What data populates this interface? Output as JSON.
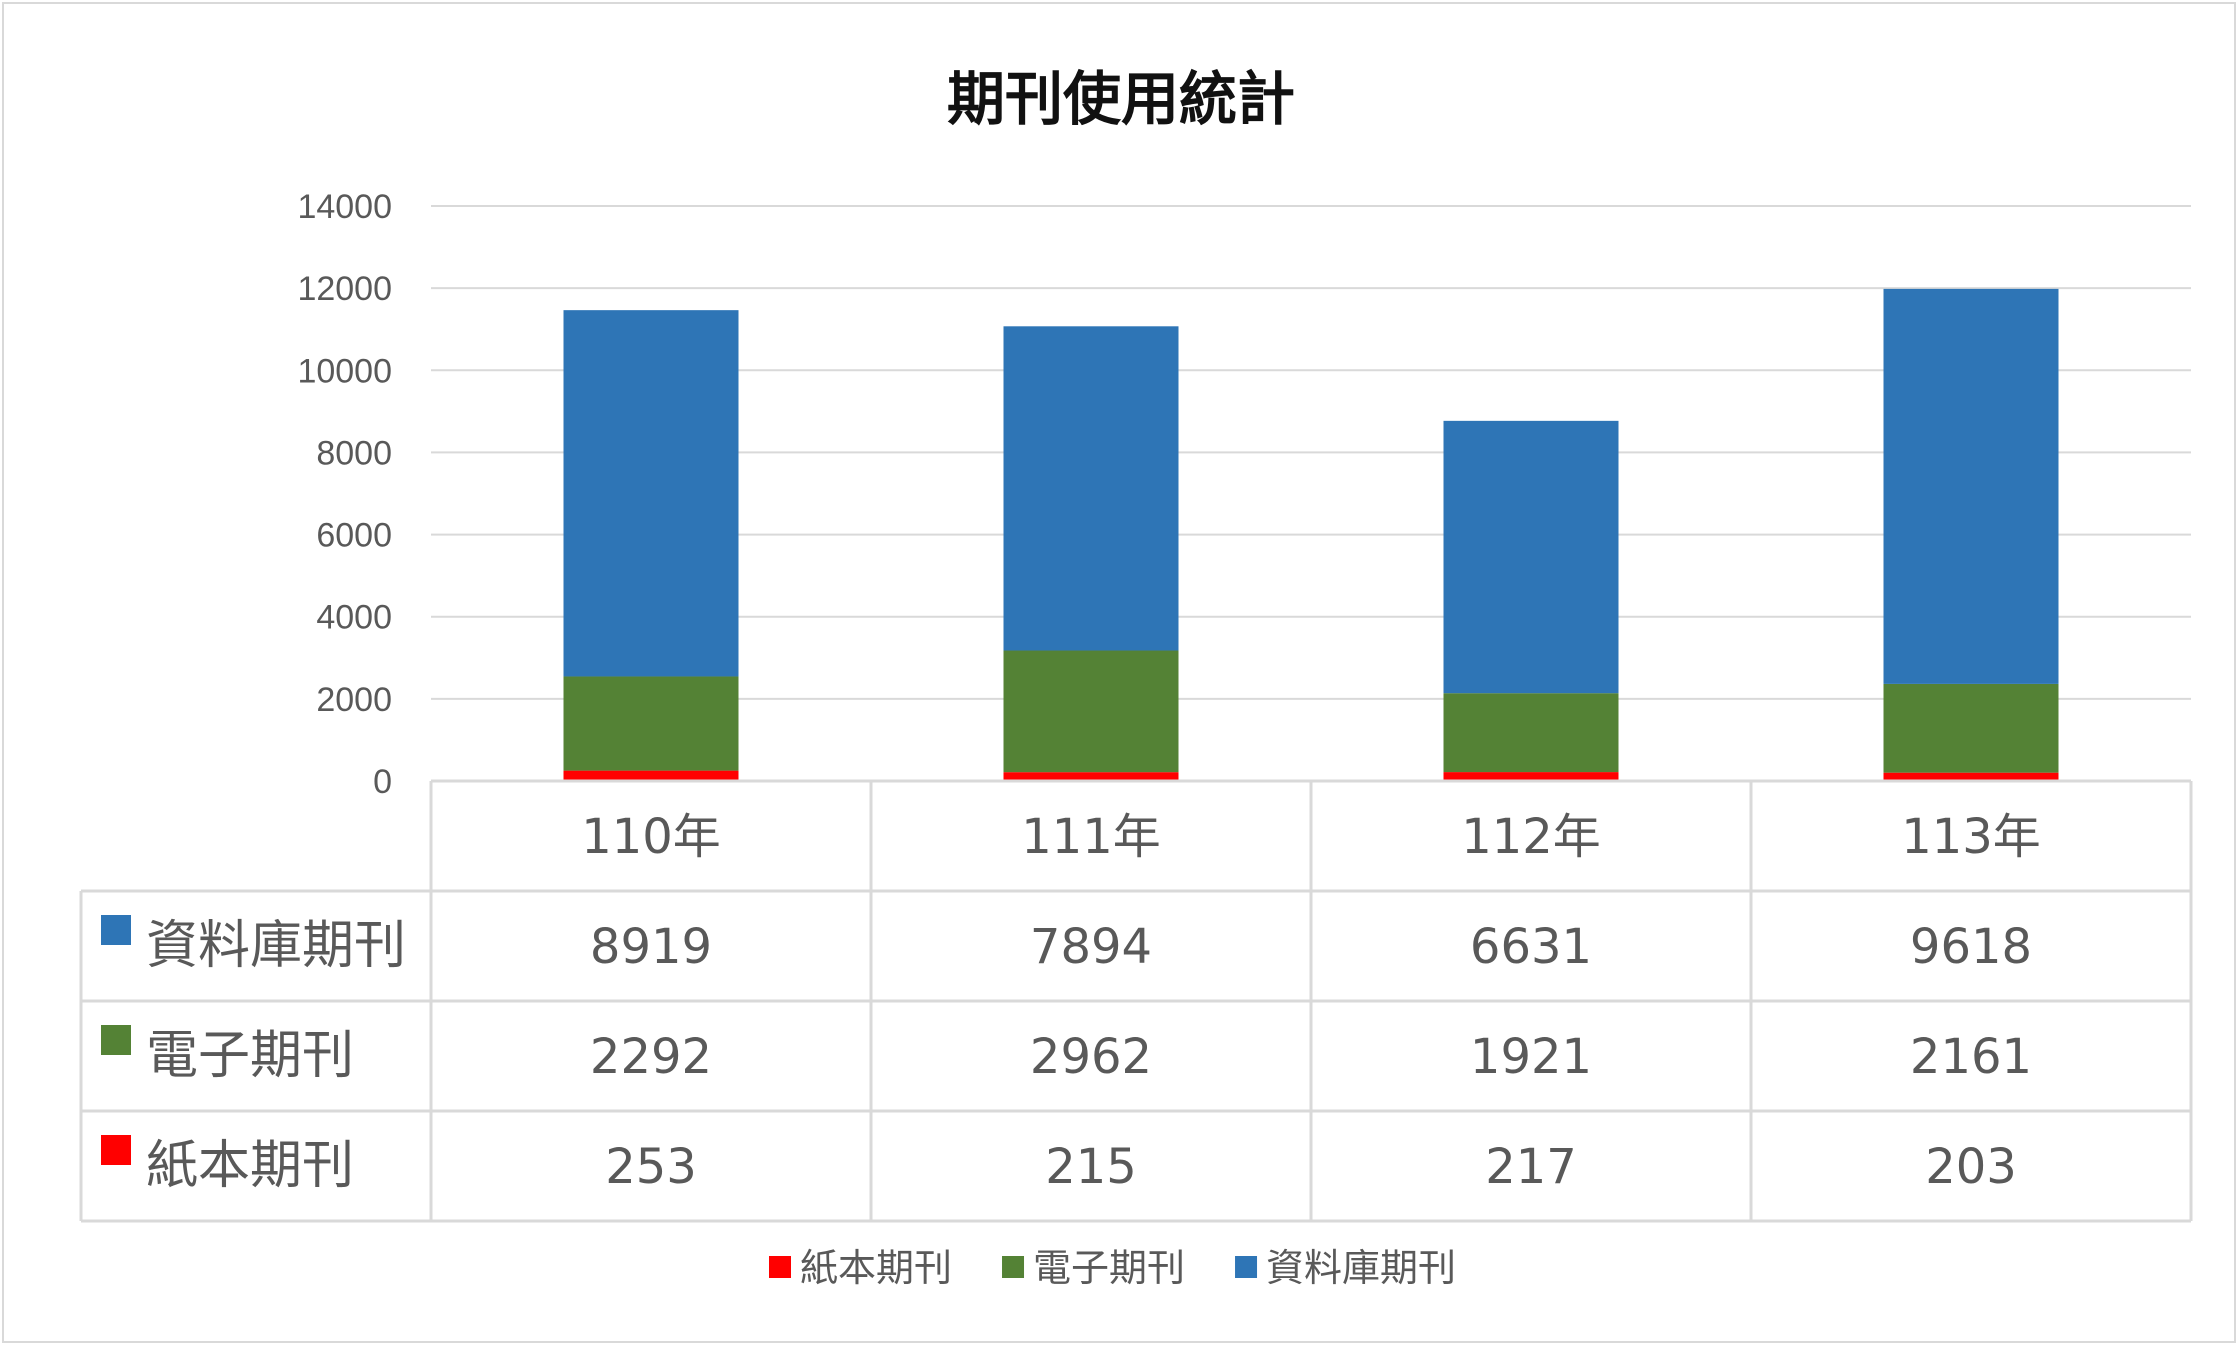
{
  "chart_data": {
    "type": "bar",
    "stacked": true,
    "title": "期刊使用統計",
    "categories": [
      "110年",
      "111年",
      "112年",
      "113年"
    ],
    "series": [
      {
        "name": "紙本期刊",
        "values": [
          253,
          215,
          217,
          203
        ],
        "color": "#ff0000"
      },
      {
        "name": "電子期刊",
        "values": [
          2292,
          2962,
          1921,
          2161
        ],
        "color": "#548235"
      },
      {
        "name": "資料庫期刊",
        "values": [
          8919,
          7894,
          6631,
          9618
        ],
        "color": "#2e75b6"
      }
    ],
    "table_rows": [
      "資料庫期刊",
      "電子期刊",
      "紙本期刊"
    ],
    "ylim": [
      0,
      14000
    ],
    "yticks": [
      "0",
      "2000",
      "4000",
      "6000",
      "8000",
      "10000",
      "12000",
      "14000"
    ],
    "grid": true,
    "legend_position": "bottom",
    "data_table": true
  }
}
